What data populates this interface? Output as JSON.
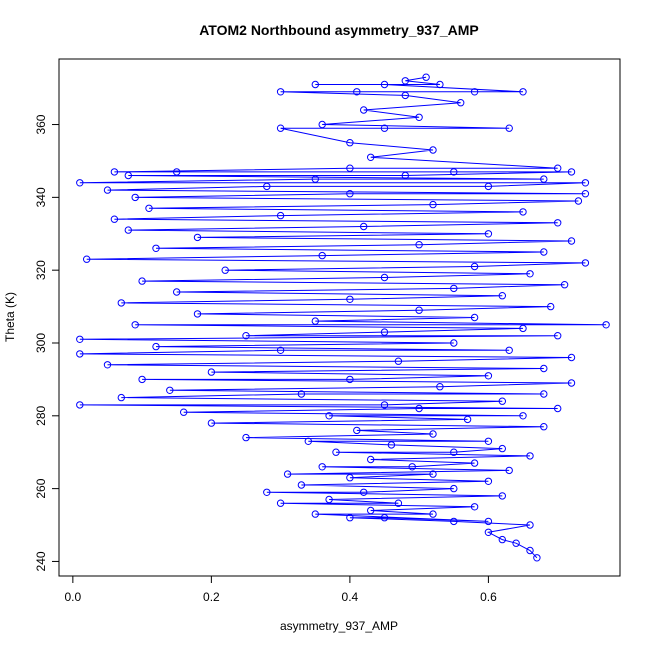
{
  "chart_data": {
    "type": "scatter",
    "title": "ATOM2 Northbound asymmetry_937_AMP",
    "xlabel": "asymmetry_937_AMP",
    "ylabel": "Theta (K)",
    "xlim": [
      -0.02,
      0.79
    ],
    "ylim": [
      236,
      378
    ],
    "x_ticks": [
      "0.0",
      "0.2",
      "0.4",
      "0.6"
    ],
    "y_ticks": [
      "240",
      "260",
      "280",
      "300",
      "320",
      "340",
      "360"
    ],
    "grid": false,
    "legend": "none",
    "marker": "open-circle",
    "line_style": "connected",
    "color": "#0000ff",
    "series": [
      {
        "points": [
          [
            0.67,
            241
          ],
          [
            0.66,
            243
          ],
          [
            0.64,
            245
          ],
          [
            0.62,
            246
          ],
          [
            0.6,
            248
          ],
          [
            0.66,
            250
          ],
          [
            0.55,
            251
          ],
          [
            0.4,
            252
          ],
          [
            0.45,
            252
          ],
          [
            0.6,
            251
          ],
          [
            0.35,
            253
          ],
          [
            0.52,
            253
          ],
          [
            0.43,
            254
          ],
          [
            0.58,
            255
          ],
          [
            0.3,
            256
          ],
          [
            0.47,
            256
          ],
          [
            0.37,
            257
          ],
          [
            0.62,
            258
          ],
          [
            0.28,
            259
          ],
          [
            0.42,
            259
          ],
          [
            0.55,
            260
          ],
          [
            0.33,
            261
          ],
          [
            0.6,
            262
          ],
          [
            0.4,
            263
          ],
          [
            0.52,
            264
          ],
          [
            0.31,
            264
          ],
          [
            0.63,
            265
          ],
          [
            0.36,
            266
          ],
          [
            0.49,
            266
          ],
          [
            0.58,
            267
          ],
          [
            0.43,
            268
          ],
          [
            0.66,
            269
          ],
          [
            0.38,
            270
          ],
          [
            0.55,
            270
          ],
          [
            0.62,
            271
          ],
          [
            0.46,
            272
          ],
          [
            0.34,
            273
          ],
          [
            0.6,
            273
          ],
          [
            0.25,
            274
          ],
          [
            0.52,
            275
          ],
          [
            0.41,
            276
          ],
          [
            0.68,
            277
          ],
          [
            0.2,
            278
          ],
          [
            0.57,
            279
          ],
          [
            0.37,
            280
          ],
          [
            0.65,
            280
          ],
          [
            0.16,
            281
          ],
          [
            0.5,
            282
          ],
          [
            0.7,
            282
          ],
          [
            0.01,
            283
          ],
          [
            0.45,
            283
          ],
          [
            0.62,
            284
          ],
          [
            0.07,
            285
          ],
          [
            0.33,
            286
          ],
          [
            0.68,
            286
          ],
          [
            0.14,
            287
          ],
          [
            0.53,
            288
          ],
          [
            0.72,
            289
          ],
          [
            0.1,
            290
          ],
          [
            0.4,
            290
          ],
          [
            0.6,
            291
          ],
          [
            0.2,
            292
          ],
          [
            0.68,
            293
          ],
          [
            0.05,
            294
          ],
          [
            0.47,
            295
          ],
          [
            0.72,
            296
          ],
          [
            0.01,
            297
          ],
          [
            0.3,
            298
          ],
          [
            0.63,
            298
          ],
          [
            0.12,
            299
          ],
          [
            0.55,
            300
          ],
          [
            0.01,
            301
          ],
          [
            0.7,
            302
          ],
          [
            0.25,
            302
          ],
          [
            0.45,
            303
          ],
          [
            0.65,
            304
          ],
          [
            0.09,
            305
          ],
          [
            0.77,
            305
          ],
          [
            0.35,
            306
          ],
          [
            0.58,
            307
          ],
          [
            0.18,
            308
          ],
          [
            0.5,
            309
          ],
          [
            0.69,
            310
          ],
          [
            0.07,
            311
          ],
          [
            0.4,
            312
          ],
          [
            0.62,
            313
          ],
          [
            0.15,
            314
          ],
          [
            0.55,
            315
          ],
          [
            0.71,
            316
          ],
          [
            0.1,
            317
          ],
          [
            0.45,
            318
          ],
          [
            0.66,
            319
          ],
          [
            0.22,
            320
          ],
          [
            0.58,
            321
          ],
          [
            0.74,
            322
          ],
          [
            0.02,
            323
          ],
          [
            0.36,
            324
          ],
          [
            0.68,
            325
          ],
          [
            0.12,
            326
          ],
          [
            0.5,
            327
          ],
          [
            0.72,
            328
          ],
          [
            0.18,
            329
          ],
          [
            0.6,
            330
          ],
          [
            0.08,
            331
          ],
          [
            0.42,
            332
          ],
          [
            0.7,
            333
          ],
          [
            0.06,
            334
          ],
          [
            0.3,
            335
          ],
          [
            0.65,
            336
          ],
          [
            0.11,
            337
          ],
          [
            0.52,
            338
          ],
          [
            0.73,
            339
          ],
          [
            0.09,
            340
          ],
          [
            0.4,
            341
          ],
          [
            0.74,
            341
          ],
          [
            0.05,
            342
          ],
          [
            0.28,
            343
          ],
          [
            0.6,
            343
          ],
          [
            0.74,
            344
          ],
          [
            0.01,
            344
          ],
          [
            0.35,
            345
          ],
          [
            0.68,
            345
          ],
          [
            0.08,
            346
          ],
          [
            0.48,
            346
          ],
          [
            0.72,
            347
          ],
          [
            0.15,
            347
          ],
          [
            0.55,
            347
          ],
          [
            0.06,
            347
          ],
          [
            0.4,
            348
          ],
          [
            0.7,
            348
          ],
          [
            0.43,
            351
          ],
          [
            0.52,
            353
          ],
          [
            0.4,
            355
          ],
          [
            0.3,
            359
          ],
          [
            0.45,
            359
          ],
          [
            0.63,
            359
          ],
          [
            0.36,
            360
          ],
          [
            0.5,
            362
          ],
          [
            0.42,
            364
          ],
          [
            0.56,
            366
          ],
          [
            0.48,
            368
          ],
          [
            0.3,
            369
          ],
          [
            0.41,
            369
          ],
          [
            0.58,
            369
          ],
          [
            0.65,
            369
          ],
          [
            0.45,
            371
          ],
          [
            0.35,
            371
          ],
          [
            0.53,
            371
          ],
          [
            0.48,
            372
          ],
          [
            0.51,
            373
          ]
        ]
      }
    ]
  }
}
